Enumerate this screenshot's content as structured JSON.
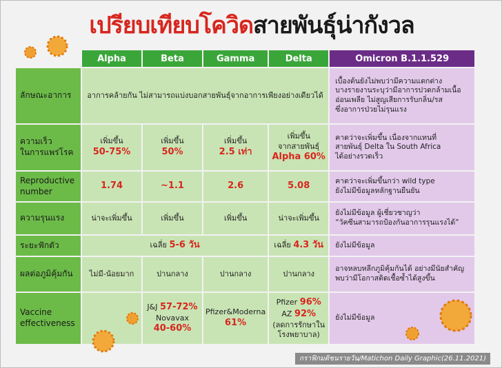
{
  "header": {
    "title_red": "เปรียบเทียบโควิด",
    "title_black": "สายพันธุ์น่ากังวล"
  },
  "table": {
    "columns": [
      "Alpha",
      "Beta",
      "Gamma",
      "Delta",
      "Omicron B.1.1.529"
    ],
    "rows": [
      {
        "label": [
          "ลักษณะอาการ"
        ],
        "cells": [
          [
            {
              "text": "อาการคล้ายกัน ไม่สามารถแบ่งบอกสายพันธุ์จากอาการเพียงอย่างเดียวได้"
            }
          ],
          [
            {
              "text": "เบื้องต้นยังไม่พบว่ามีความแตกต่าง"
            },
            {
              "text": "บางรายงานระบุว่ามีอาการปวดกล้ามเนื้อ"
            },
            {
              "text": "อ่อนเพลีย ไม่สูญเสียการรับกลิ่น/รส"
            },
            {
              "text": "ซึ่งอาการป่วยไม่รุนแรง"
            }
          ]
        ]
      },
      {
        "label": [
          "ความเร็ว",
          "ในการแพร่โรค"
        ],
        "cells": [
          [
            {
              "text": "เพิ่มขึ้น"
            },
            {
              "highlight": "50-75%"
            }
          ],
          [
            {
              "text": "เพิ่มขึ้น"
            },
            {
              "highlight": "50%"
            }
          ],
          [
            {
              "text": "เพิ่มขึ้น"
            },
            {
              "highlight": "2.5 เท่า"
            }
          ],
          [
            {
              "text": "เพิ่มขึ้น"
            },
            {
              "text": "จากสายพันธุ์"
            },
            {
              "highlight": "Alpha 60%"
            }
          ],
          [
            {
              "text": "คาดว่าจะเพิ่มขึ้น เนื่องจากแทนที่"
            },
            {
              "text": "สายพันธุ์ Delta ใน South Africa"
            },
            {
              "text": "ได้อย่างรวดเร็ว"
            }
          ]
        ]
      },
      {
        "label": [
          "Reproductive",
          "number"
        ],
        "cells": [
          [
            {
              "highlight": "1.74"
            }
          ],
          [
            {
              "highlight": "~1.1"
            }
          ],
          [
            {
              "highlight": "2.6"
            }
          ],
          [
            {
              "highlight": "5.08"
            }
          ],
          [
            {
              "text": "คาดว่าจะเพิ่มขึ้นกว่า wild type"
            },
            {
              "text": "ยังไม่มีข้อมูลหลักฐานยืนยัน"
            }
          ]
        ]
      },
      {
        "label": [
          "ความรุนแรง"
        ],
        "cells": [
          [
            {
              "text": "น่าจะเพิ่มขึ้น"
            }
          ],
          [
            {
              "text": "เพิ่มขึ้น"
            }
          ],
          [
            {
              "text": "เพิ่มขึ้น"
            }
          ],
          [
            {
              "text": "น่าจะเพิ่มขึ้น"
            }
          ],
          [
            {
              "text": "ยังไม่มีข้อมูล ผู้เชี่ยวชาญว่า"
            },
            {
              "text": "“วัคซีนสามารถป้องกันอาการรุนแรงได้”"
            }
          ]
        ]
      },
      {
        "label": [
          "ระยะฟักตัว"
        ],
        "cells": [
          [
            {
              "text": "เฉลี่ย",
              "highlight": "5-6 วัน"
            }
          ],
          [
            {
              "text": "เฉลี่ย",
              "highlight": "4.3 วัน"
            }
          ],
          [
            {
              "text": "ยังไม่มีข้อมูล"
            }
          ]
        ]
      },
      {
        "label": [
          "ผลต่อภูมิคุ้มกัน"
        ],
        "cells": [
          [
            {
              "text": "ไม่มี-น้อยมาก"
            }
          ],
          [
            {
              "text": "ปานกลาง"
            }
          ],
          [
            {
              "text": "ปานกลาง"
            }
          ],
          [
            {
              "text": "ปานกลาง"
            }
          ],
          [
            {
              "text": "อาจหลบหลีกภูมิคุ้มกันได้ อย่างมีนัยสำคัญ"
            },
            {
              "text": "พบว่ามีโอกาสติดเชื้อซ้ำได้สูงขึ้น"
            }
          ]
        ]
      },
      {
        "label": [
          "Vaccine",
          "effectiveness"
        ],
        "cells": [
          [],
          [
            {
              "text": "J&J",
              "highlight": "57-72%"
            },
            {
              "text": "Novavax"
            },
            {
              "highlight": "40-60%"
            }
          ],
          [
            {
              "text": "Pfizer&Moderna"
            },
            {
              "highlight": "61%"
            }
          ],
          [
            {
              "text": "Pfizer",
              "highlight": "96%"
            },
            {
              "text": "AZ",
              "highlight": "92%"
            },
            {
              "text": "(ลดการรักษาใน"
            },
            {
              "text": "โรงพยาบาล)"
            }
          ],
          [
            {
              "text": "ยังไม่มีข้อมูล"
            }
          ]
        ]
      }
    ]
  },
  "footer": "กราฟิกมติชนรายวัน/Matichon Daily Graphic(26.11.2021)"
}
